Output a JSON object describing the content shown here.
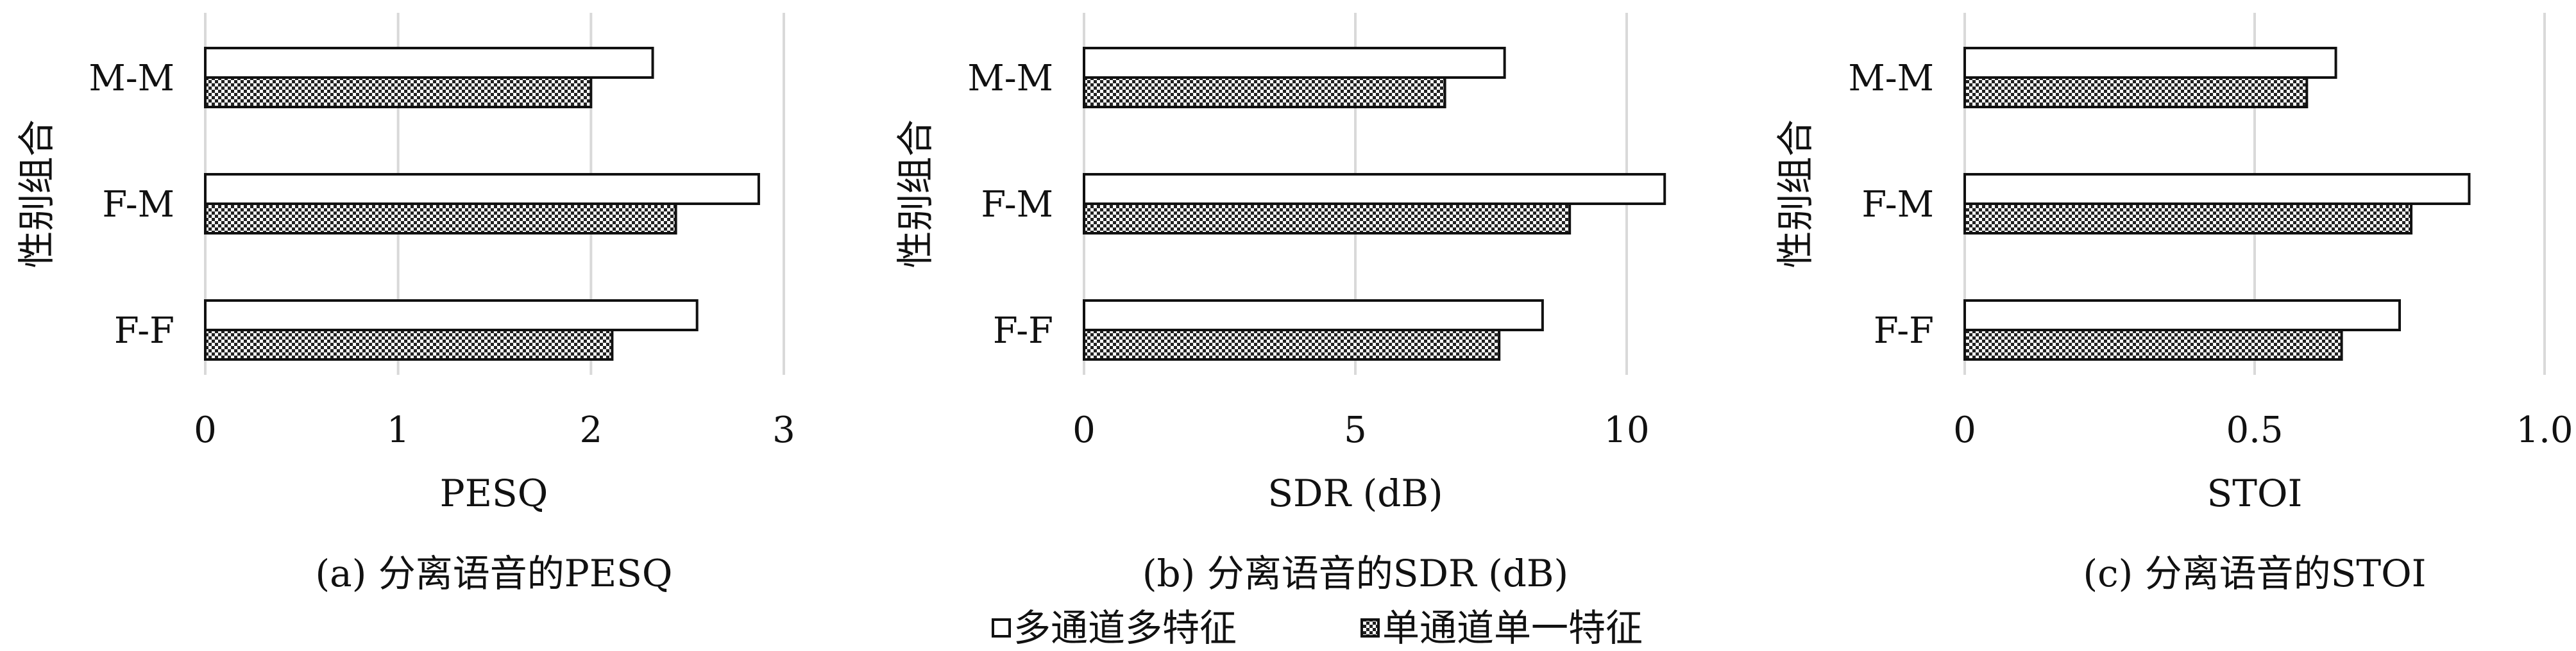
{
  "chart_data": [
    {
      "type": "bar",
      "orientation": "horizontal",
      "caption": "(a) 分离语音的PESQ",
      "xlabel": "PESQ",
      "ylabel": "性别组合",
      "categories": [
        "M-M",
        "F-M",
        "F-F"
      ],
      "xlim": [
        0,
        3
      ],
      "xticks": [
        0,
        1,
        2,
        3
      ],
      "xtick_labels": [
        "0",
        "1",
        "2",
        "3"
      ],
      "grid": "vertical",
      "series": [
        {
          "name": "多通道多特征",
          "values": [
            2.32,
            2.87,
            2.55
          ]
        },
        {
          "name": "单通道单一特征",
          "values": [
            2.0,
            2.44,
            2.11
          ]
        }
      ]
    },
    {
      "type": "bar",
      "orientation": "horizontal",
      "caption": "(b) 分离语音的SDR (dB)",
      "xlabel": "SDR (dB)",
      "ylabel": "性别组合",
      "categories": [
        "M-M",
        "F-M",
        "F-F"
      ],
      "xlim": [
        0,
        10
      ],
      "xticks": [
        0,
        5,
        10
      ],
      "xtick_labels": [
        "0",
        "5",
        "10"
      ],
      "grid": "vertical",
      "series": [
        {
          "name": "多通道多特征",
          "values": [
            7.75,
            10.7,
            8.45
          ]
        },
        {
          "name": "单通道单一特征",
          "values": [
            6.65,
            8.95,
            7.65
          ]
        }
      ]
    },
    {
      "type": "bar",
      "orientation": "horizontal",
      "caption": "(c) 分离语音的STOI",
      "xlabel": "STOI",
      "ylabel": "性别组合",
      "categories": [
        "M-M",
        "F-M",
        "F-F"
      ],
      "xlim": [
        0,
        1.0
      ],
      "xticks": [
        0,
        0.5,
        1.0
      ],
      "xtick_labels": [
        "0",
        "0.5",
        "1.0"
      ],
      "grid": "vertical",
      "series": [
        {
          "name": "多通道多特征",
          "values": [
            0.64,
            0.87,
            0.75
          ]
        },
        {
          "name": "单通道单一特征",
          "values": [
            0.59,
            0.77,
            0.65
          ]
        }
      ]
    }
  ],
  "legend": {
    "placement": "bottom-center",
    "items": [
      {
        "label": "多通道多特征",
        "style": "white"
      },
      {
        "label": "单通道单一特征",
        "style": "checkered"
      }
    ]
  },
  "colors": {
    "bar_outline": "#111111",
    "series_1_fill": "#ffffff",
    "series_2_pattern": "#222222",
    "grid": "#d9d9d9",
    "text": "#111111"
  }
}
